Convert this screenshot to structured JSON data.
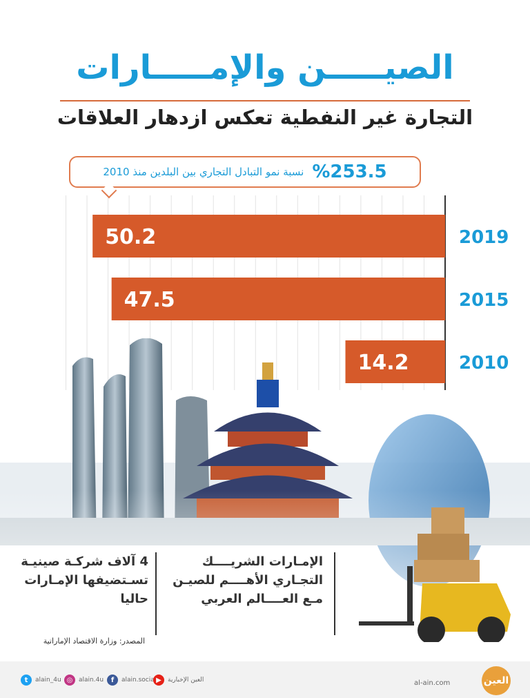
{
  "header": {
    "title": "الصيـــــن والإمـــــارات",
    "subtitle": "التجارة غير النفطية تعكس ازدهار العلاقات"
  },
  "callout": {
    "value": "%253.5",
    "text": "نسبة نمو التبادل التجاري بين البلدين منذ 2010"
  },
  "chart_data": {
    "type": "bar",
    "orientation": "horizontal",
    "categories": [
      "2019",
      "2015",
      "2010"
    ],
    "values": [
      50.2,
      47.5,
      14.2
    ],
    "value_labels": [
      "50.2",
      "47.5",
      "14.2"
    ],
    "xlim": [
      0,
      57
    ],
    "grid": true,
    "colors": {
      "bar": "#d65a2a",
      "value_label": "#ffffff",
      "year_label": "#1a9bd7"
    }
  },
  "facts": [
    {
      "text": "الإمـارات الشريــــك التجـاري الأهــــم للصيـن مـع العــــالم العربي"
    },
    {
      "text": "4 آلاف شركـة صينيـة تسـتضيفها الإمـارات حاليا"
    }
  ],
  "source": "المصدر: وزارة الاقتصاد الإماراتية",
  "footer": {
    "social": [
      {
        "icon": "twitter-icon",
        "handle": "alain_4u",
        "color": "#1da1f2",
        "glyph": "t"
      },
      {
        "icon": "instagram-icon",
        "handle": "alain.4u",
        "color": "#c13584",
        "glyph": "◎"
      },
      {
        "icon": "facebook-icon",
        "handle": "alain.social",
        "color": "#3b5998",
        "glyph": "f"
      },
      {
        "icon": "youtube-icon",
        "handle": "العين الإخبارية",
        "color": "#e62117",
        "glyph": "▶"
      }
    ],
    "domain": "al-ain.com",
    "logo_text": "العين"
  }
}
